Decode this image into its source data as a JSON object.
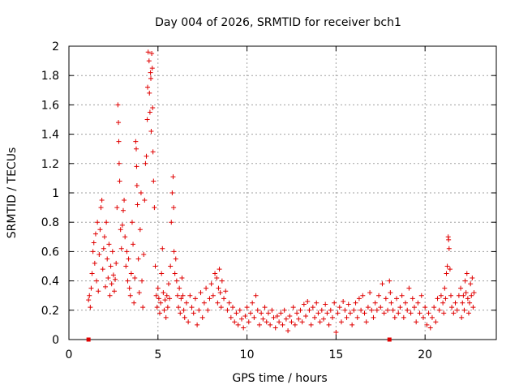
{
  "chart_data": {
    "type": "scatter",
    "title": "Day 004 of 2026, SRMTID for receiver bch1",
    "xlabel": "GPS time / hours",
    "ylabel": "SRMTID / TECUs",
    "xlim": [
      0,
      24
    ],
    "ylim": [
      0,
      2
    ],
    "xticks": [
      0,
      5,
      10,
      15,
      20
    ],
    "yticks": [
      0,
      0.2,
      0.4,
      0.6,
      0.8,
      1,
      1.2,
      1.4,
      1.6,
      1.8,
      2
    ],
    "xtick_labels": [
      "0",
      "5",
      "10",
      "15",
      "20"
    ],
    "ytick_labels": [
      "0",
      "0.2",
      "0.4",
      "0.6",
      "0.8",
      "1",
      "1.2",
      "1.4",
      "1.6",
      "1.8",
      "2"
    ],
    "grid": true,
    "marker": "plus",
    "color": "#e00000",
    "series": [
      {
        "name": "SRMTID",
        "points": [
          [
            1.1,
            0.27
          ],
          [
            1.15,
            0.3
          ],
          [
            1.2,
            0.22
          ],
          [
            1.25,
            0.35
          ],
          [
            1.3,
            0.45
          ],
          [
            1.35,
            0.6
          ],
          [
            1.4,
            0.66
          ],
          [
            1.45,
            0.52
          ],
          [
            1.5,
            0.72
          ],
          [
            1.55,
            0.4
          ],
          [
            1.6,
            0.8
          ],
          [
            1.65,
            0.33
          ],
          [
            1.7,
            0.58
          ],
          [
            1.75,
            0.75
          ],
          [
            1.8,
            0.9
          ],
          [
            1.85,
            0.95
          ],
          [
            1.9,
            0.48
          ],
          [
            1.95,
            0.62
          ],
          [
            2.0,
            0.7
          ],
          [
            2.05,
            0.36
          ],
          [
            2.1,
            0.8
          ],
          [
            2.15,
            0.55
          ],
          [
            2.2,
            0.42
          ],
          [
            2.25,
            0.65
          ],
          [
            2.3,
            0.3
          ],
          [
            2.35,
            0.5
          ],
          [
            2.4,
            0.38
          ],
          [
            2.45,
            0.6
          ],
          [
            2.5,
            0.44
          ],
          [
            2.55,
            0.33
          ],
          [
            2.6,
            0.41
          ],
          [
            2.65,
            0.52
          ],
          [
            2.7,
            0.9
          ],
          [
            2.75,
            1.6
          ],
          [
            2.78,
            1.48
          ],
          [
            2.8,
            1.35
          ],
          [
            2.82,
            1.2
          ],
          [
            2.85,
            1.08
          ],
          [
            2.9,
            0.75
          ],
          [
            2.95,
            0.62
          ],
          [
            3.0,
            0.78
          ],
          [
            3.05,
            0.88
          ],
          [
            3.1,
            0.95
          ],
          [
            3.15,
            0.7
          ],
          [
            3.2,
            0.5
          ],
          [
            3.25,
            0.6
          ],
          [
            3.3,
            0.4
          ],
          [
            3.35,
            0.55
          ],
          [
            3.4,
            0.35
          ],
          [
            3.45,
            0.3
          ],
          [
            3.5,
            0.45
          ],
          [
            3.55,
            0.8
          ],
          [
            3.6,
            0.65
          ],
          [
            3.65,
            0.25
          ],
          [
            3.7,
            0.42
          ],
          [
            3.75,
            1.35
          ],
          [
            3.78,
            1.3
          ],
          [
            3.8,
            1.18
          ],
          [
            3.82,
            1.05
          ],
          [
            3.85,
            0.92
          ],
          [
            3.9,
            0.55
          ],
          [
            3.95,
            0.32
          ],
          [
            4.0,
            0.75
          ],
          [
            4.05,
            1.0
          ],
          [
            4.1,
            0.4
          ],
          [
            4.15,
            0.22
          ],
          [
            4.2,
            0.58
          ],
          [
            4.25,
            0.95
          ],
          [
            4.3,
            1.2
          ],
          [
            4.35,
            1.25
          ],
          [
            4.4,
            1.5
          ],
          [
            4.42,
            1.72
          ],
          [
            4.45,
            1.96
          ],
          [
            4.5,
            1.9
          ],
          [
            4.52,
            1.68
          ],
          [
            4.55,
            1.55
          ],
          [
            4.58,
            1.82
          ],
          [
            4.6,
            1.78
          ],
          [
            4.62,
            1.42
          ],
          [
            4.65,
            1.95
          ],
          [
            4.68,
            1.85
          ],
          [
            4.7,
            1.58
          ],
          [
            4.72,
            1.28
          ],
          [
            4.75,
            1.08
          ],
          [
            4.8,
            0.9
          ],
          [
            4.85,
            0.5
          ],
          [
            4.9,
            0.3
          ],
          [
            4.95,
            0.22
          ],
          [
            5.0,
            0.35
          ],
          [
            5.05,
            0.28
          ],
          [
            5.1,
            0.18
          ],
          [
            5.15,
            0.25
          ],
          [
            5.2,
            0.45
          ],
          [
            5.25,
            0.62
          ],
          [
            5.3,
            0.32
          ],
          [
            5.35,
            0.2
          ],
          [
            5.4,
            0.27
          ],
          [
            5.45,
            0.15
          ],
          [
            5.5,
            0.3
          ],
          [
            5.55,
            0.22
          ],
          [
            5.6,
            0.38
          ],
          [
            5.65,
            0.28
          ],
          [
            5.7,
            0.5
          ],
          [
            5.75,
            0.8
          ],
          [
            5.8,
            1.0
          ],
          [
            5.85,
            1.11
          ],
          [
            5.88,
            0.9
          ],
          [
            5.9,
            0.6
          ],
          [
            5.95,
            0.45
          ],
          [
            6.0,
            0.55
          ],
          [
            6.05,
            0.4
          ],
          [
            6.1,
            0.3
          ],
          [
            6.15,
            0.22
          ],
          [
            6.2,
            0.35
          ],
          [
            6.25,
            0.18
          ],
          [
            6.3,
            0.28
          ],
          [
            6.35,
            0.42
          ],
          [
            6.4,
            0.3
          ],
          [
            6.45,
            0.2
          ],
          [
            6.5,
            0.15
          ],
          [
            6.6,
            0.25
          ],
          [
            6.7,
            0.12
          ],
          [
            6.8,
            0.3
          ],
          [
            6.9,
            0.22
          ],
          [
            7.0,
            0.18
          ],
          [
            7.1,
            0.28
          ],
          [
            7.2,
            0.1
          ],
          [
            7.3,
            0.2
          ],
          [
            7.4,
            0.32
          ],
          [
            7.5,
            0.15
          ],
          [
            7.6,
            0.25
          ],
          [
            7.7,
            0.35
          ],
          [
            7.8,
            0.2
          ],
          [
            7.9,
            0.28
          ],
          [
            8.0,
            0.38
          ],
          [
            8.1,
            0.3
          ],
          [
            8.2,
            0.45
          ],
          [
            8.3,
            0.42
          ],
          [
            8.35,
            0.25
          ],
          [
            8.4,
            0.35
          ],
          [
            8.45,
            0.48
          ],
          [
            8.5,
            0.32
          ],
          [
            8.55,
            0.22
          ],
          [
            8.6,
            0.4
          ],
          [
            8.7,
            0.28
          ],
          [
            8.8,
            0.33
          ],
          [
            8.9,
            0.2
          ],
          [
            9.0,
            0.25
          ],
          [
            9.1,
            0.15
          ],
          [
            9.2,
            0.22
          ],
          [
            9.3,
            0.12
          ],
          [
            9.4,
            0.18
          ],
          [
            9.5,
            0.1
          ],
          [
            9.6,
            0.2
          ],
          [
            9.7,
            0.14
          ],
          [
            9.8,
            0.08
          ],
          [
            9.9,
            0.16
          ],
          [
            10.0,
            0.22
          ],
          [
            10.1,
            0.12
          ],
          [
            10.2,
            0.18
          ],
          [
            10.3,
            0.25
          ],
          [
            10.4,
            0.15
          ],
          [
            10.5,
            0.3
          ],
          [
            10.6,
            0.2
          ],
          [
            10.7,
            0.1
          ],
          [
            10.8,
            0.18
          ],
          [
            10.9,
            0.14
          ],
          [
            11.0,
            0.22
          ],
          [
            11.1,
            0.12
          ],
          [
            11.2,
            0.18
          ],
          [
            11.3,
            0.1
          ],
          [
            11.4,
            0.2
          ],
          [
            11.5,
            0.15
          ],
          [
            11.6,
            0.08
          ],
          [
            11.7,
            0.16
          ],
          [
            11.8,
            0.12
          ],
          [
            11.9,
            0.18
          ],
          [
            12.0,
            0.1
          ],
          [
            12.1,
            0.2
          ],
          [
            12.2,
            0.14
          ],
          [
            12.3,
            0.06
          ],
          [
            12.4,
            0.16
          ],
          [
            12.5,
            0.12
          ],
          [
            12.6,
            0.22
          ],
          [
            12.7,
            0.1
          ],
          [
            12.8,
            0.18
          ],
          [
            12.9,
            0.14
          ],
          [
            13.0,
            0.2
          ],
          [
            13.1,
            0.12
          ],
          [
            13.2,
            0.24
          ],
          [
            13.3,
            0.16
          ],
          [
            13.4,
            0.26
          ],
          [
            13.5,
            0.2
          ],
          [
            13.6,
            0.1
          ],
          [
            13.7,
            0.22
          ],
          [
            13.8,
            0.15
          ],
          [
            13.9,
            0.25
          ],
          [
            14.0,
            0.18
          ],
          [
            14.1,
            0.12
          ],
          [
            14.2,
            0.2
          ],
          [
            14.3,
            0.14
          ],
          [
            14.4,
            0.24
          ],
          [
            14.5,
            0.18
          ],
          [
            14.6,
            0.1
          ],
          [
            14.7,
            0.2
          ],
          [
            14.8,
            0.15
          ],
          [
            14.9,
            0.25
          ],
          [
            15.0,
            0.05
          ],
          [
            15.1,
            0.18
          ],
          [
            15.2,
            0.22
          ],
          [
            15.3,
            0.12
          ],
          [
            15.4,
            0.26
          ],
          [
            15.5,
            0.2
          ],
          [
            15.6,
            0.15
          ],
          [
            15.7,
            0.24
          ],
          [
            15.8,
            0.18
          ],
          [
            15.9,
            0.1
          ],
          [
            16.0,
            0.2
          ],
          [
            16.1,
            0.25
          ],
          [
            16.2,
            0.15
          ],
          [
            16.3,
            0.28
          ],
          [
            16.4,
            0.2
          ],
          [
            16.5,
            0.3
          ],
          [
            16.6,
            0.18
          ],
          [
            16.7,
            0.12
          ],
          [
            16.8,
            0.22
          ],
          [
            16.9,
            0.32
          ],
          [
            17.0,
            0.2
          ],
          [
            17.1,
            0.15
          ],
          [
            17.2,
            0.25
          ],
          [
            17.3,
            0.2
          ],
          [
            17.4,
            0.3
          ],
          [
            17.5,
            0.22
          ],
          [
            17.6,
            0.38
          ],
          [
            17.7,
            0.18
          ],
          [
            17.8,
            0.28
          ],
          [
            17.9,
            0.2
          ],
          [
            18.0,
            0.4
          ],
          [
            18.05,
            0.32
          ],
          [
            18.1,
            0.25
          ],
          [
            18.2,
            0.2
          ],
          [
            18.3,
            0.15
          ],
          [
            18.4,
            0.28
          ],
          [
            18.5,
            0.18
          ],
          [
            18.6,
            0.22
          ],
          [
            18.7,
            0.3
          ],
          [
            18.8,
            0.15
          ],
          [
            18.9,
            0.25
          ],
          [
            19.0,
            0.2
          ],
          [
            19.1,
            0.35
          ],
          [
            19.2,
            0.18
          ],
          [
            19.3,
            0.28
          ],
          [
            19.4,
            0.22
          ],
          [
            19.5,
            0.12
          ],
          [
            19.6,
            0.25
          ],
          [
            19.7,
            0.18
          ],
          [
            19.8,
            0.3
          ],
          [
            19.9,
            0.15
          ],
          [
            20.0,
            0.22
          ],
          [
            20.1,
            0.1
          ],
          [
            20.2,
            0.18
          ],
          [
            20.3,
            0.08
          ],
          [
            20.4,
            0.15
          ],
          [
            20.5,
            0.22
          ],
          [
            20.6,
            0.12
          ],
          [
            20.7,
            0.28
          ],
          [
            20.8,
            0.2
          ],
          [
            20.9,
            0.3
          ],
          [
            21.0,
            0.25
          ],
          [
            21.05,
            0.18
          ],
          [
            21.1,
            0.35
          ],
          [
            21.15,
            0.28
          ],
          [
            21.2,
            0.45
          ],
          [
            21.25,
            0.5
          ],
          [
            21.3,
            0.7
          ],
          [
            21.32,
            0.68
          ],
          [
            21.35,
            0.62
          ],
          [
            21.4,
            0.48
          ],
          [
            21.45,
            0.3
          ],
          [
            21.5,
            0.22
          ],
          [
            21.6,
            0.18
          ],
          [
            21.7,
            0.25
          ],
          [
            21.8,
            0.2
          ],
          [
            21.9,
            0.3
          ],
          [
            22.0,
            0.35
          ],
          [
            22.05,
            0.15
          ],
          [
            22.1,
            0.25
          ],
          [
            22.15,
            0.3
          ],
          [
            22.2,
            0.2
          ],
          [
            22.25,
            0.4
          ],
          [
            22.3,
            0.32
          ],
          [
            22.35,
            0.45
          ],
          [
            22.4,
            0.28
          ],
          [
            22.45,
            0.18
          ],
          [
            22.5,
            0.25
          ],
          [
            22.55,
            0.38
          ],
          [
            22.6,
            0.3
          ],
          [
            22.65,
            0.42
          ],
          [
            22.7,
            0.22
          ],
          [
            22.75,
            0.32
          ]
        ]
      }
    ],
    "gap_markers": [
      {
        "x": 1.1,
        "y": 0
      },
      {
        "x": 18.0,
        "y": 0
      }
    ]
  }
}
